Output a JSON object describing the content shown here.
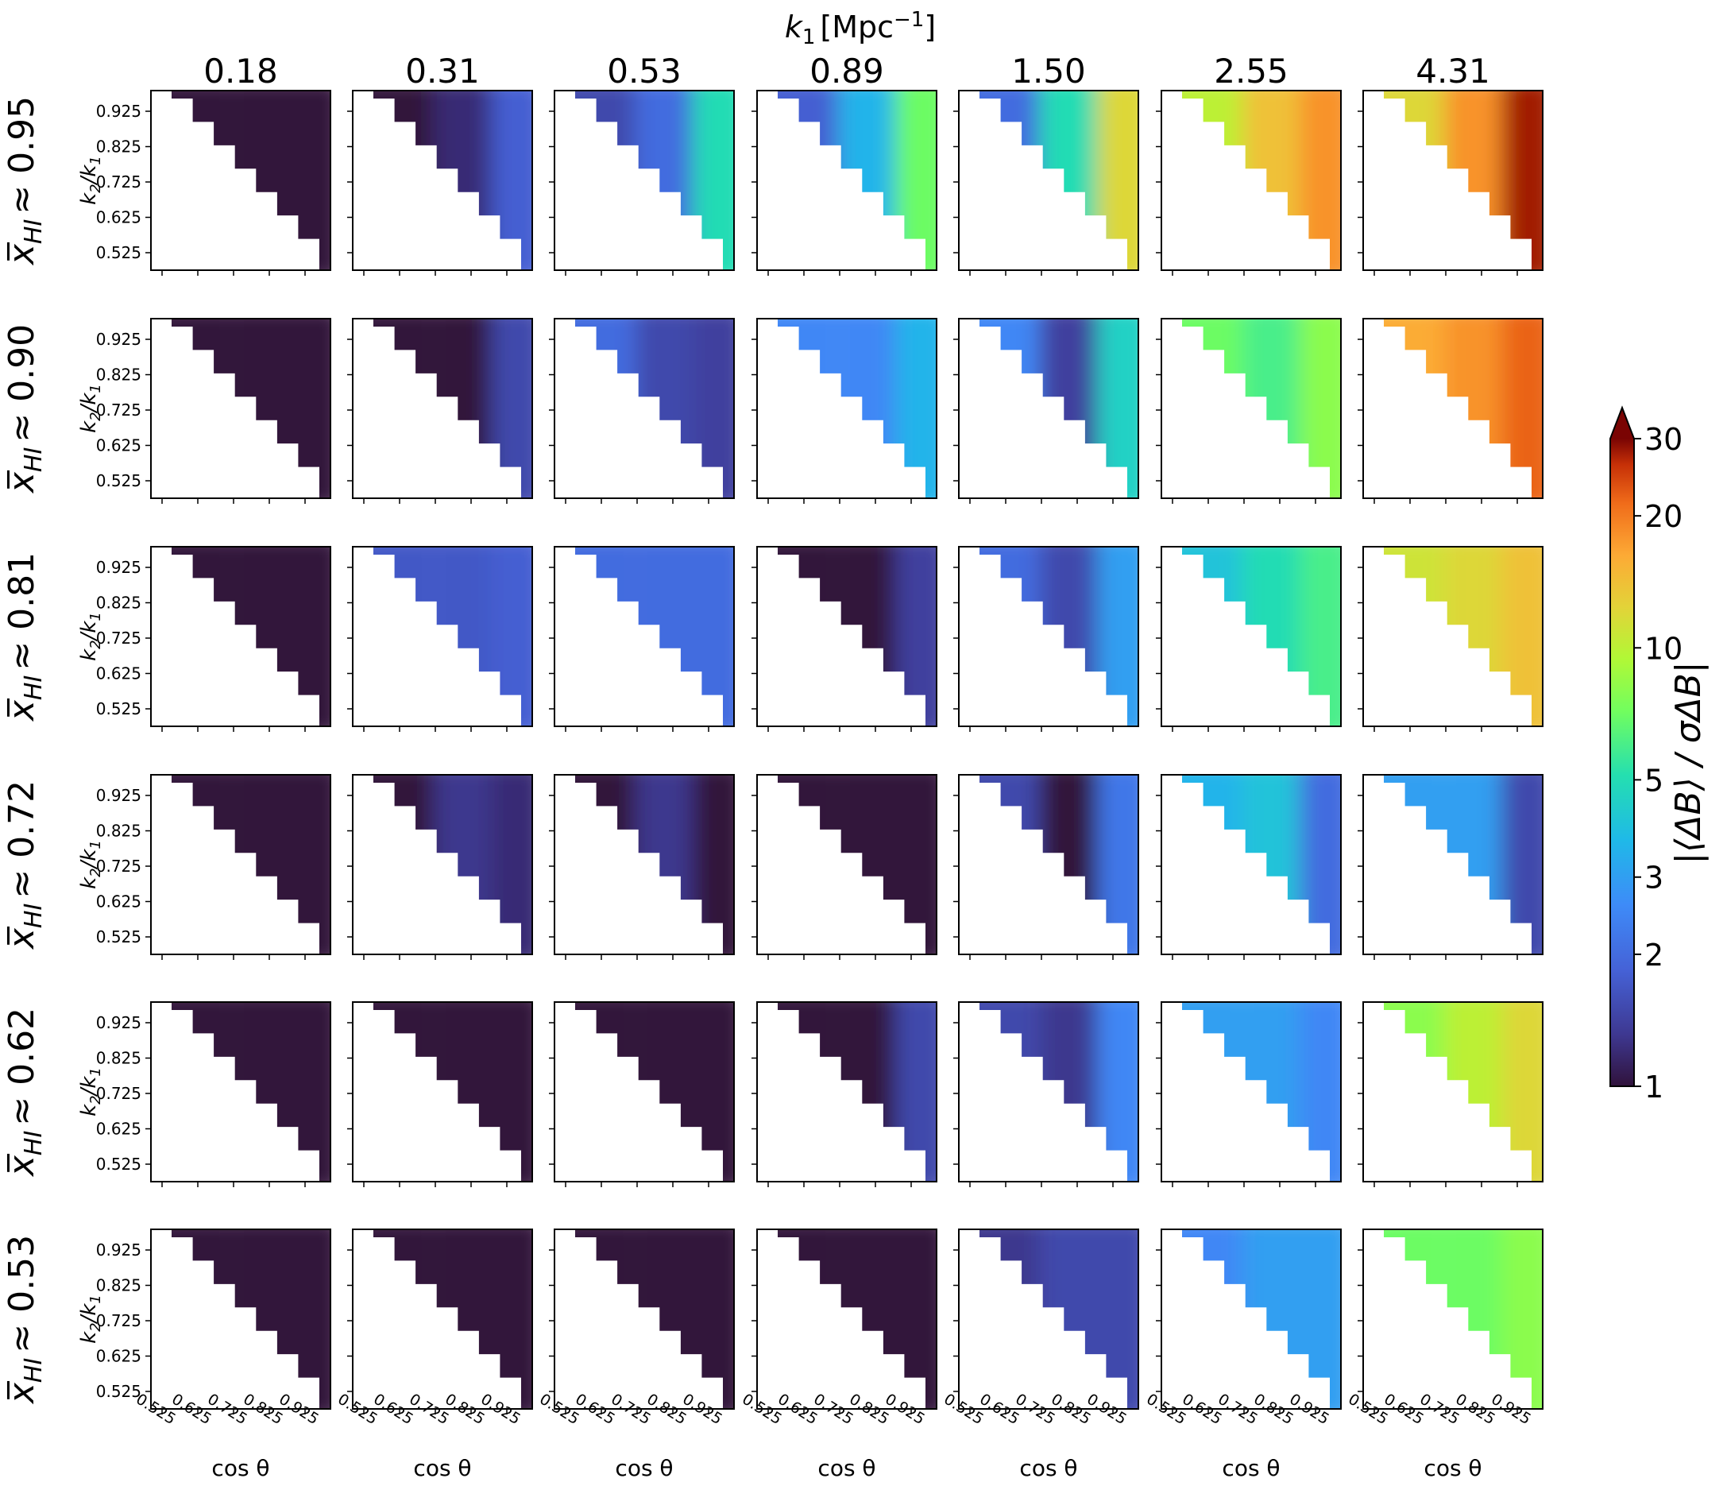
{
  "chart_data": {
    "type": "heatmap",
    "column_header": {
      "var": "k",
      "sub": "1",
      "unit_base": "[Mpc",
      "unit_exp": "−1",
      "unit_close": "]"
    },
    "columns": [
      "0.18",
      "0.31",
      "0.53",
      "0.89",
      "1.50",
      "2.55",
      "4.31"
    ],
    "rows": [
      {
        "value": "0.95",
        "label": "≈ 0.95"
      },
      {
        "value": "0.90",
        "label": "≈ 0.90"
      },
      {
        "value": "0.81",
        "label": "≈ 0.81"
      },
      {
        "value": "0.72",
        "label": "≈ 0.72"
      },
      {
        "value": "0.62",
        "label": "≈ 0.62"
      },
      {
        "value": "0.53",
        "label": "≈ 0.53"
      }
    ],
    "row_label_var": "x̅",
    "row_label_sub": "HI",
    "ylabel": {
      "base": "k",
      "sub1": "2",
      "mid": "/k",
      "sub2": "1"
    },
    "yticks": [
      "0.925",
      "0.825",
      "0.725",
      "0.625",
      "0.525"
    ],
    "xlabel": "cos θ",
    "xticks": [
      "0.525",
      "0.625",
      "0.725",
      "0.825",
      "0.925"
    ],
    "colorbar": {
      "label": "|⟨ΔB⟩ / σΔB|",
      "scale": "log",
      "range": [
        1,
        30
      ],
      "ticks": [
        "1",
        "2",
        "3",
        "5",
        "10",
        "20",
        "30"
      ],
      "extend": "max",
      "colormap": "turbo"
    },
    "cell_levels": [
      [
        [
          1,
          1,
          1
        ],
        [
          1,
          1.2,
          1.8
        ],
        [
          1.5,
          2,
          5
        ],
        [
          1.8,
          3.5,
          7
        ],
        [
          2,
          5,
          12
        ],
        [
          10,
          14,
          18
        ],
        [
          12,
          18,
          28
        ]
      ],
      [
        [
          1,
          1,
          1
        ],
        [
          1,
          1,
          1.5
        ],
        [
          2,
          1.5,
          1.4
        ],
        [
          2.5,
          2.5,
          3.5
        ],
        [
          2.5,
          1.4,
          4.5
        ],
        [
          7,
          6,
          8
        ],
        [
          16,
          18,
          22
        ]
      ],
      [
        [
          1,
          1,
          1
        ],
        [
          1.7,
          1.7,
          1.8
        ],
        [
          2,
          2,
          2
        ],
        [
          1,
          1,
          1.4
        ],
        [
          2,
          1.5,
          3
        ],
        [
          4,
          5,
          6
        ],
        [
          11,
          12,
          14
        ]
      ],
      [
        [
          1,
          1,
          1
        ],
        [
          1,
          1.3,
          1.2
        ],
        [
          1,
          1.3,
          1
        ],
        [
          1,
          1,
          1
        ],
        [
          1.5,
          1,
          2.2
        ],
        [
          3.5,
          4,
          2
        ],
        [
          3,
          3,
          1.5
        ]
      ],
      [
        [
          1,
          1,
          1
        ],
        [
          1,
          1,
          1
        ],
        [
          1,
          1,
          1
        ],
        [
          1,
          1,
          1.5
        ],
        [
          1.5,
          1.3,
          2.5
        ],
        [
          3,
          3,
          2.5
        ],
        [
          8,
          10,
          12
        ]
      ],
      [
        [
          1,
          1,
          1
        ],
        [
          1,
          1,
          1
        ],
        [
          1,
          1,
          1
        ],
        [
          1,
          1,
          1
        ],
        [
          1.3,
          1.5,
          1.5
        ],
        [
          2.5,
          3,
          3
        ],
        [
          7,
          7,
          8
        ]
      ]
    ]
  }
}
